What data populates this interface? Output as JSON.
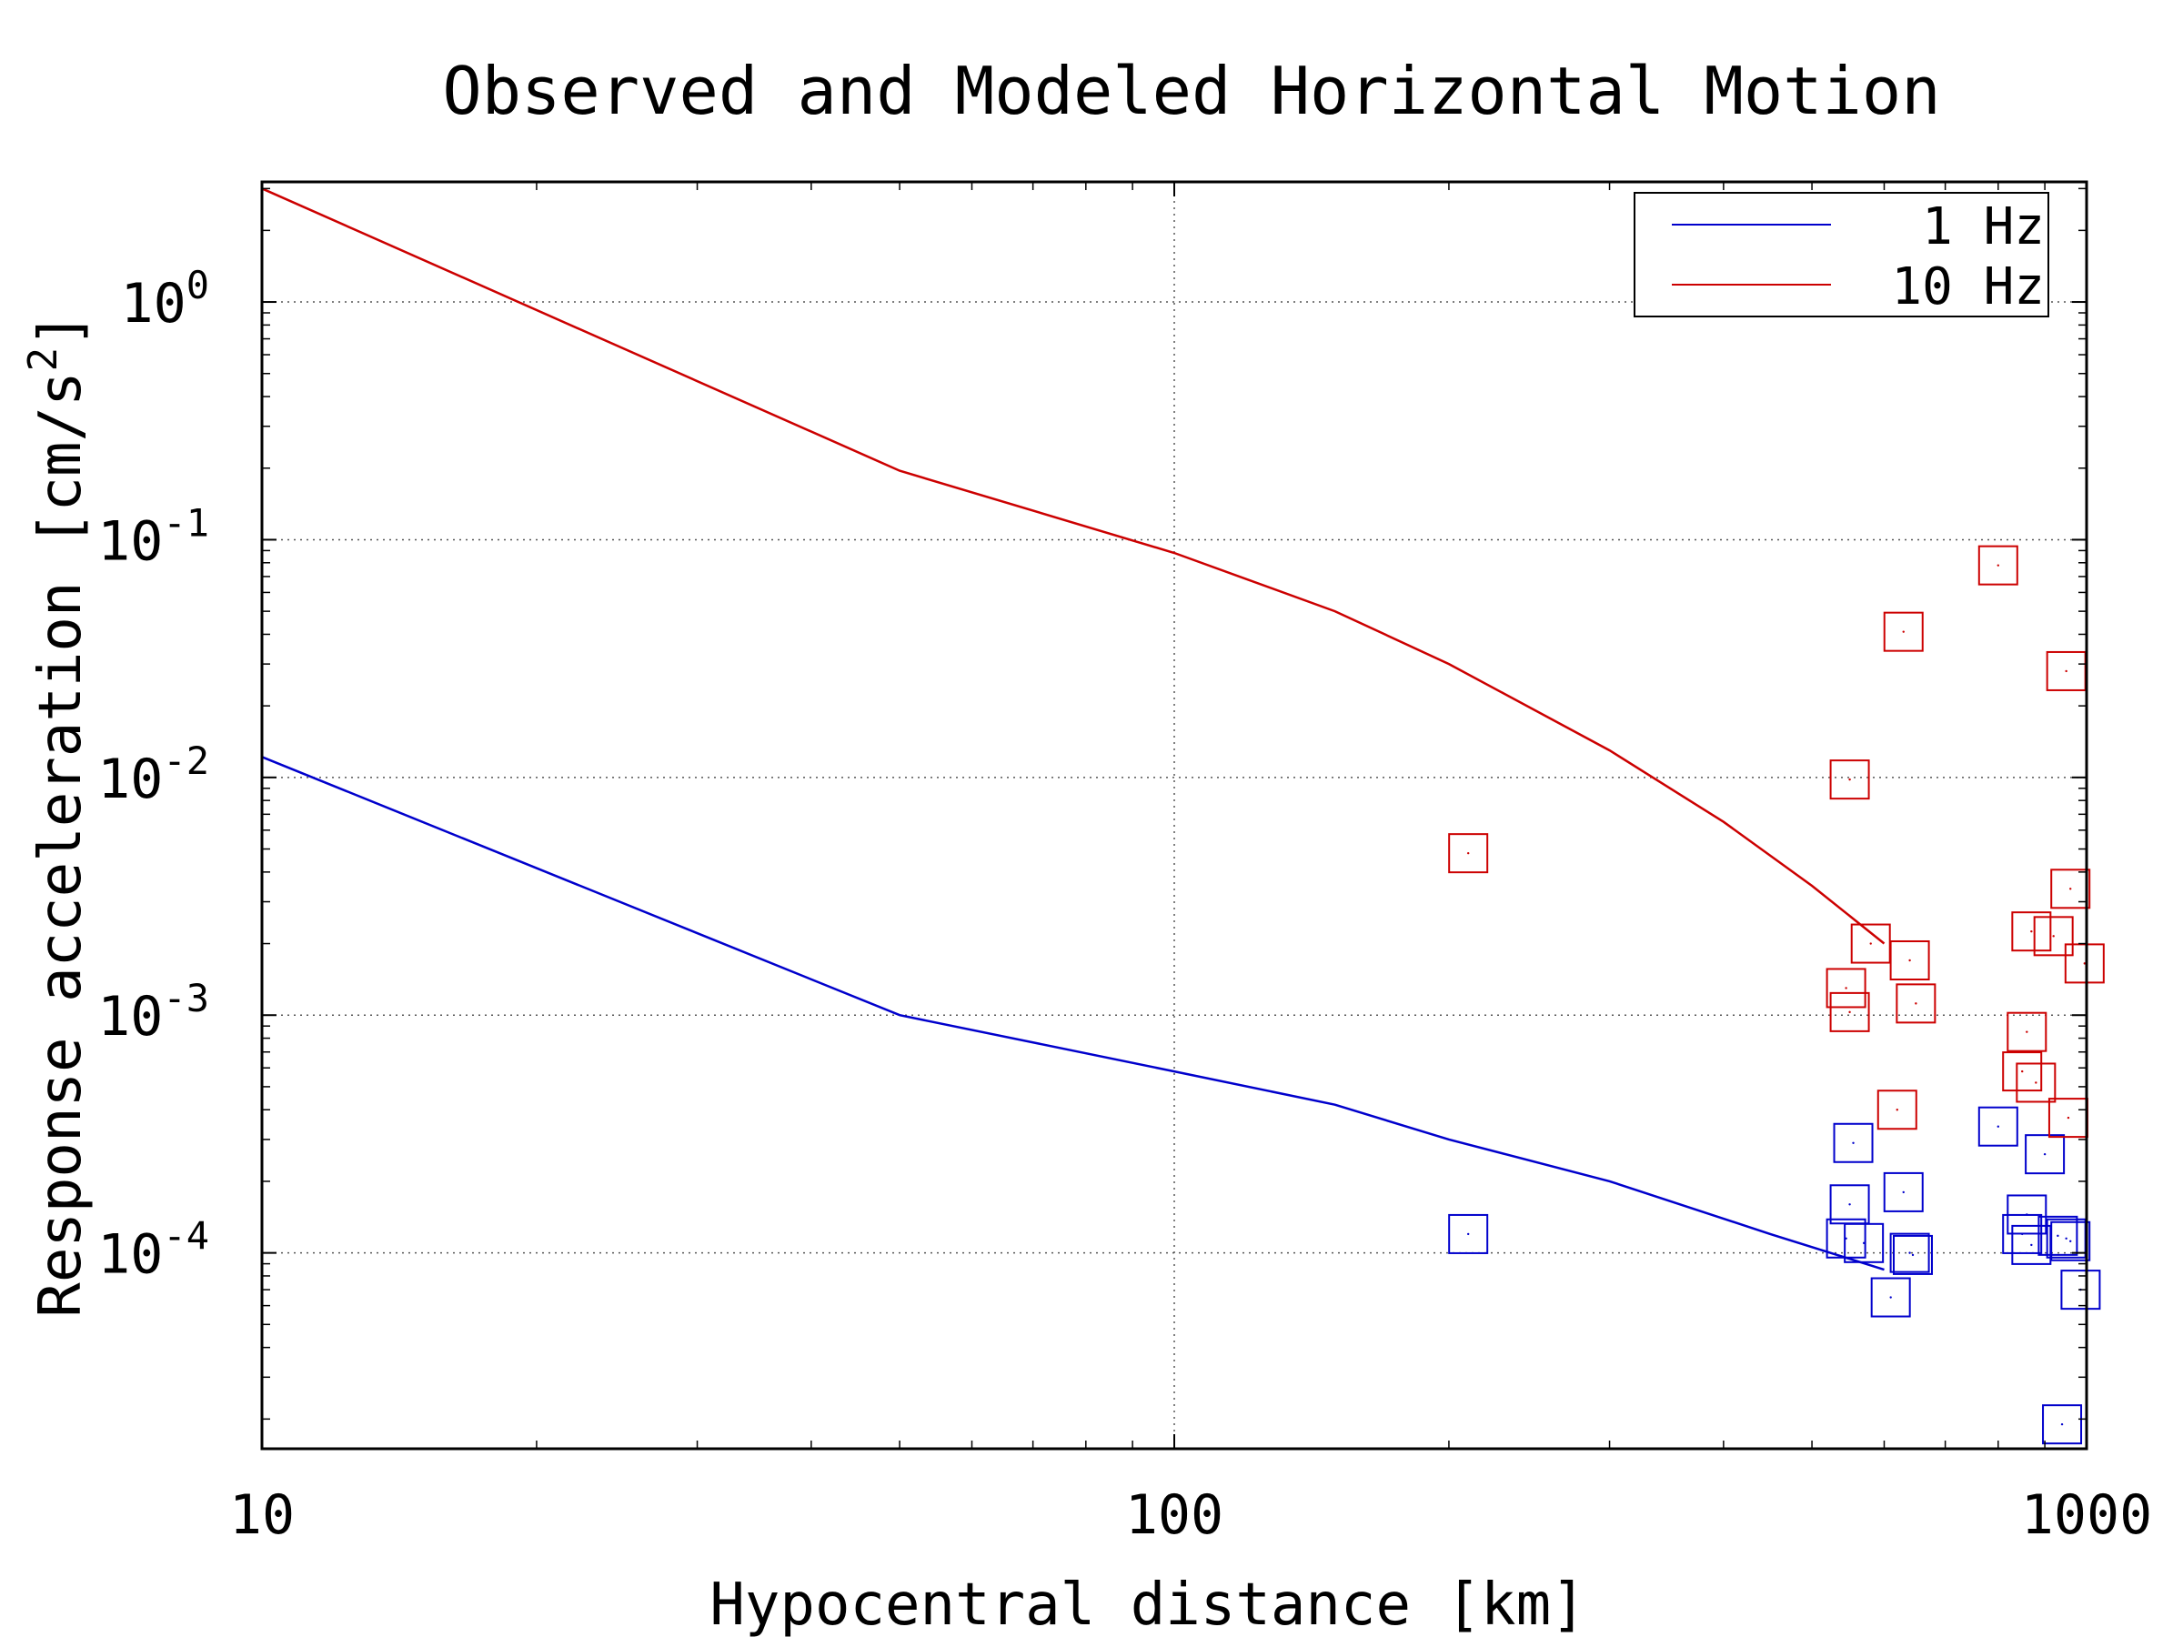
{
  "chart_data": {
    "type": "scatter",
    "title": "Observed and Modeled Horizontal Motion",
    "xlabel": "Hypocentral distance [km]",
    "ylabel": "Response acceleration [cm/s",
    "ylabel_sup": "2",
    "ylabel_end": "]",
    "x_scale": "log",
    "y_scale": "log",
    "xlim": [
      10,
      1000
    ],
    "ylim": [
      1.5e-05,
      3.2
    ],
    "x_ticks": [
      {
        "value": 10,
        "label": "10"
      },
      {
        "value": 100,
        "label": "100"
      },
      {
        "value": 1000,
        "label": "1000"
      }
    ],
    "y_ticks": [
      {
        "value": 1,
        "base": "10",
        "exp": "0"
      },
      {
        "value": 0.1,
        "base": "10",
        "exp": "-1"
      },
      {
        "value": 0.01,
        "base": "10",
        "exp": "-2"
      },
      {
        "value": 0.001,
        "base": "10",
        "exp": "-3"
      },
      {
        "value": 0.0001,
        "base": "10",
        "exp": "-4"
      }
    ],
    "grid": true,
    "legend_position": "top-right",
    "series": [
      {
        "name": "1 Hz",
        "color": "#0000cc",
        "model": [
          [
            10,
            0.0122
          ],
          [
            50,
            0.001
          ],
          [
            100,
            0.00058
          ],
          [
            150,
            0.00042
          ],
          [
            200,
            0.0003
          ],
          [
            300,
            0.0002
          ],
          [
            450,
            0.00012
          ],
          [
            600,
            8.5e-05
          ]
        ],
        "observed": [
          [
            210,
            0.00012
          ],
          [
            555,
            0.00029
          ],
          [
            550,
            0.00016
          ],
          [
            545,
            0.000115
          ],
          [
            570,
            0.00011
          ],
          [
            630,
            0.00018
          ],
          [
            640,
            0.0001
          ],
          [
            645,
            9.8e-05
          ],
          [
            610,
            6.5e-05
          ],
          [
            800,
            0.00034
          ],
          [
            860,
            0.000145
          ],
          [
            850,
            0.00012
          ],
          [
            870,
            0.000108
          ],
          [
            900,
            0.00026
          ],
          [
            930,
            0.000118
          ],
          [
            950,
            0.000115
          ],
          [
            960,
            0.000112
          ],
          [
            985,
            7e-05
          ],
          [
            940,
            1.9e-05
          ]
        ]
      },
      {
        "name": "10 Hz",
        "color": "#cc0000",
        "model": [
          [
            10,
            3.0
          ],
          [
            50,
            0.195
          ],
          [
            100,
            0.088
          ],
          [
            150,
            0.05
          ],
          [
            200,
            0.03
          ],
          [
            300,
            0.013
          ],
          [
            400,
            0.0065
          ],
          [
            500,
            0.0035
          ],
          [
            600,
            0.002
          ]
        ],
        "observed": [
          [
            210,
            0.0048
          ],
          [
            550,
            0.0098
          ],
          [
            630,
            0.041
          ],
          [
            800,
            0.078
          ],
          [
            950,
            0.028
          ],
          [
            580,
            0.002
          ],
          [
            640,
            0.0017
          ],
          [
            650,
            0.00112
          ],
          [
            545,
            0.0013
          ],
          [
            550,
            0.00103
          ],
          [
            620,
            0.0004
          ],
          [
            860,
            0.00085
          ],
          [
            850,
            0.00058
          ],
          [
            880,
            0.00052
          ],
          [
            870,
            0.00225
          ],
          [
            920,
            0.00215
          ],
          [
            960,
            0.0034
          ],
          [
            995,
            0.00165
          ],
          [
            955,
            0.00037
          ]
        ]
      }
    ]
  }
}
